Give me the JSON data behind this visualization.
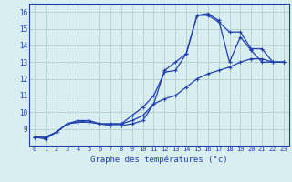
{
  "xlabel": "Graphe des températures (°c)",
  "hours": [
    0,
    1,
    2,
    3,
    4,
    5,
    6,
    7,
    8,
    9,
    10,
    11,
    12,
    13,
    14,
    15,
    16,
    17,
    18,
    19,
    20,
    21,
    22,
    23
  ],
  "line1": [
    8.5,
    8.4,
    8.8,
    9.3,
    9.5,
    9.5,
    9.3,
    9.3,
    9.3,
    9.5,
    9.8,
    10.5,
    10.8,
    11.0,
    11.5,
    12.0,
    12.3,
    12.5,
    12.7,
    13.0,
    13.2,
    13.2,
    13.0,
    13.0
  ],
  "line2": [
    8.5,
    8.5,
    8.8,
    9.3,
    9.4,
    9.5,
    9.3,
    9.3,
    9.3,
    9.8,
    10.3,
    11.0,
    12.4,
    12.5,
    13.5,
    15.8,
    15.8,
    15.4,
    14.8,
    14.8,
    13.8,
    13.8,
    13.0,
    13.0
  ],
  "line3": [
    8.5,
    8.5,
    8.8,
    9.3,
    9.4,
    9.4,
    9.3,
    9.2,
    9.2,
    9.3,
    9.5,
    10.5,
    12.5,
    13.0,
    13.5,
    15.8,
    15.9,
    15.5,
    13.0,
    14.5,
    13.7,
    13.0,
    13.0,
    13.0
  ],
  "line_color": "#1f3faf",
  "bg_color": "#d8eef0",
  "grid_color": "#b0c8ca",
  "ylim": [
    8.0,
    16.5
  ],
  "yticks": [
    9,
    10,
    11,
    12,
    13,
    14,
    15,
    16
  ],
  "marker": "+"
}
